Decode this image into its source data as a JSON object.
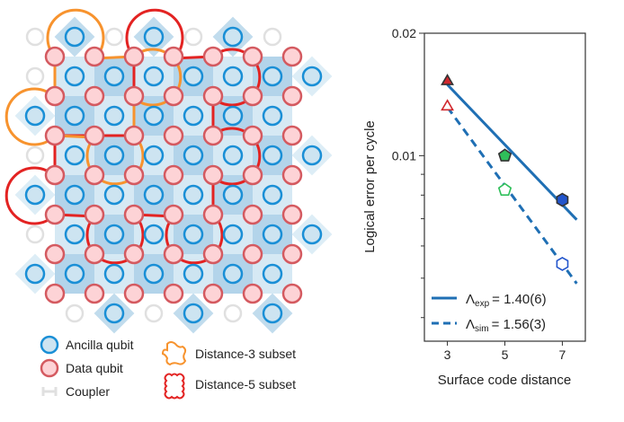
{
  "lattice": {
    "colors": {
      "ancilla_fill": "#cde4f1",
      "ancilla_stroke": "#1a8fd6",
      "data_fill": "#fdd3d6",
      "data_stroke": "#d45a60",
      "coupler": "#e0e0e0",
      "plaquette_light": "#cfe5f2",
      "plaquette_dark": "#a6cde6",
      "distance3": "#f7932e",
      "distance5": "#e32322"
    }
  },
  "legend": {
    "ancilla": "Ancilla qubit",
    "data": "Data qubit",
    "coupler": "Coupler",
    "distance3": "Distance-3 subset",
    "distance5": "Distance-5 subset"
  },
  "chart_data": {
    "type": "line",
    "xlabel": "Surface code distance",
    "ylabel": "Logical error per cycle",
    "x_ticks": [
      "3",
      "5",
      "7"
    ],
    "y_ticks": [
      "0.02",
      "0.01"
    ],
    "yscale": "log",
    "xlim": [
      2.2,
      7.8
    ],
    "ylim": [
      0.0035,
      0.02
    ],
    "grid": false,
    "legend_placement": "bottom",
    "series": [
      {
        "name": "Λexp = 1.40(6)",
        "label_symbol": "Λ",
        "label_sub": "exp",
        "label_value": "= 1.40(6)",
        "style": "solid",
        "color": "#1f6fb4",
        "markers_filled": true,
        "points": [
          {
            "x": 3,
            "y": 0.01535
          },
          {
            "x": 5,
            "y": 0.01
          },
          {
            "x": 7,
            "y": 0.00779
          }
        ],
        "fit": [
          {
            "x": 3,
            "y": 0.01495
          },
          {
            "x": 7.5,
            "y": 0.00696
          }
        ]
      },
      {
        "name": "Λsim = 1.56(3)",
        "label_symbol": "Λ",
        "label_sub": "sim",
        "label_value": "= 1.56(3)",
        "style": "dashed",
        "color": "#1f6fb4",
        "markers_filled": false,
        "points": [
          {
            "x": 3,
            "y": 0.0133
          },
          {
            "x": 5,
            "y": 0.00824
          },
          {
            "x": 7,
            "y": 0.00542
          }
        ],
        "fit": [
          {
            "x": 3,
            "y": 0.01316
          },
          {
            "x": 7.5,
            "y": 0.00485
          }
        ]
      }
    ],
    "marker_styles": [
      {
        "distance": 3,
        "shape": "triangle",
        "color": "#d0282e"
      },
      {
        "distance": 5,
        "shape": "pentagon",
        "color": "#2fbf5a"
      },
      {
        "distance": 7,
        "shape": "hexagon",
        "color": "#2255cc"
      }
    ]
  }
}
